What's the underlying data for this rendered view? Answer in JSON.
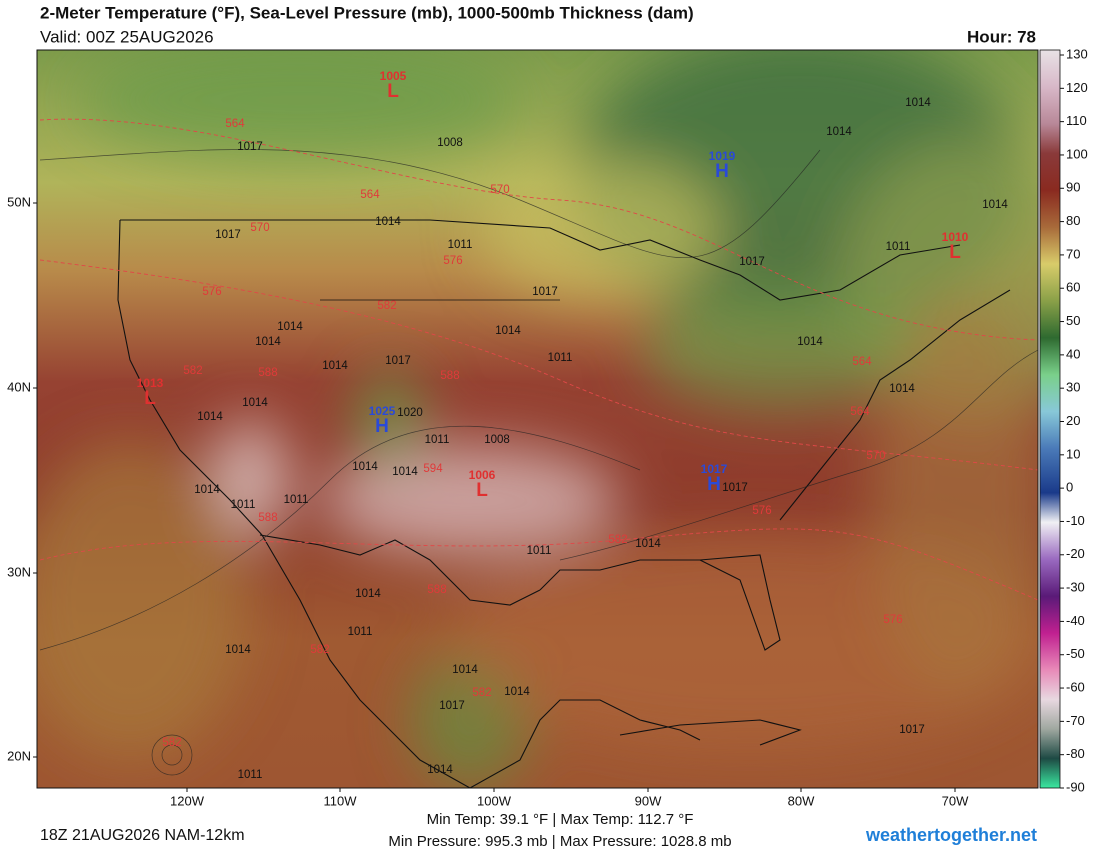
{
  "header": {
    "title": "2-Meter Temperature (°F), Sea-Level Pressure (mb), 1000-500mb Thickness (dam)",
    "valid": "Valid: 00Z 25AUG2026",
    "hour": "Hour: 78"
  },
  "colorbar": {
    "ticks": [
      130,
      120,
      110,
      100,
      90,
      80,
      70,
      60,
      50,
      40,
      30,
      20,
      10,
      0,
      -10,
      -20,
      -30,
      -40,
      -50,
      -60,
      -70,
      -80,
      -90
    ]
  },
  "latitude_labels": [
    "50N",
    "40N",
    "30N",
    "20N"
  ],
  "longitude_labels": [
    "120W",
    "110W",
    "100W",
    "90W",
    "80W",
    "70W"
  ],
  "isobar_labels": [
    1017,
    1008,
    1014,
    1017,
    1011,
    1017,
    1014,
    1014,
    1014,
    1011,
    1017,
    1014,
    1014,
    1014,
    1011,
    1008,
    1014,
    1014,
    1011,
    1014,
    1011,
    1011,
    1014,
    1014,
    1011,
    1014,
    1014,
    1014,
    1017,
    1014,
    1011,
    1017,
    1014,
    1014,
    1014,
    1011,
    1017,
    1014,
    1014,
    1017,
    1020
  ],
  "thickness_labels": [
    564,
    564,
    570,
    570,
    576,
    576,
    582,
    582,
    588,
    588,
    564,
    564,
    570,
    576,
    582,
    588,
    582,
    588,
    594,
    582,
    576,
    582
  ],
  "pressure_centers": [
    {
      "value": 1005,
      "symbol": "L",
      "color": "#e03030"
    },
    {
      "value": 1019,
      "symbol": "H",
      "color": "#2a4ad8"
    },
    {
      "value": 1010,
      "symbol": "L",
      "color": "#e03030"
    },
    {
      "value": 1013,
      "symbol": "L",
      "color": "#e03030"
    },
    {
      "value": 1025,
      "symbol": "H",
      "color": "#2a4ad8"
    },
    {
      "value": 1006,
      "symbol": "L",
      "color": "#e03030"
    },
    {
      "value": 1017,
      "symbol": "H",
      "color": "#2a4ad8"
    }
  ],
  "footer": {
    "temp_range": "Min Temp: 39.1 °F | Max Temp: 112.7 °F",
    "pressure_range": "Min Pressure: 995.3 mb | Max Pressure: 1028.8 mb",
    "model_run": "18Z 21AUG2026 NAM-12km",
    "site": "weathertogether.net"
  }
}
